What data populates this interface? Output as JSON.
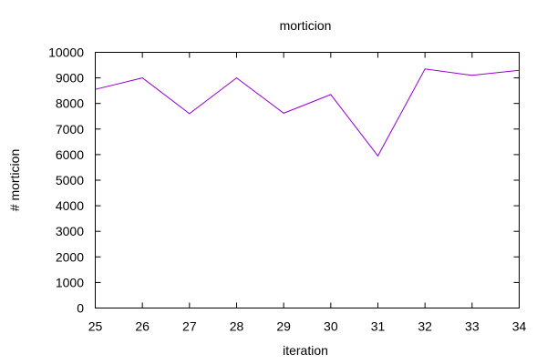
{
  "chart_data": {
    "type": "line",
    "title": "morticion",
    "xlabel": "iteration",
    "ylabel": "# morticion",
    "xlim": [
      25,
      34
    ],
    "ylim": [
      0,
      10000
    ],
    "x_ticks": [
      "25",
      "26",
      "27",
      "28",
      "29",
      "30",
      "31",
      "32",
      "33",
      "34"
    ],
    "y_ticks": [
      "0",
      "1000",
      "2000",
      "3000",
      "4000",
      "5000",
      "6000",
      "7000",
      "8000",
      "9000",
      "10000"
    ],
    "grid": false,
    "legend": "none",
    "series": [
      {
        "color": "#9400d3",
        "x": [
          25,
          26,
          27,
          28,
          29,
          30,
          31,
          32,
          33,
          34
        ],
        "y": [
          8550,
          9000,
          7600,
          9000,
          7620,
          8350,
          5950,
          9350,
          9100,
          9300
        ]
      }
    ]
  }
}
